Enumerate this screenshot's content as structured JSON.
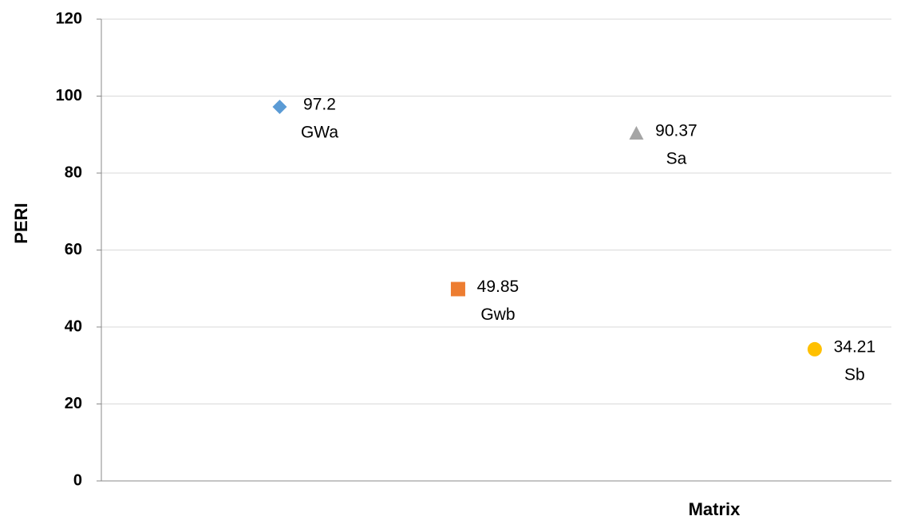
{
  "chart_data": {
    "type": "scatter",
    "x_label": "Matrix",
    "y_label": "PERI",
    "series": [
      {
        "name": "GWa",
        "color": "#5b9bd5",
        "marker": "diamond",
        "x": [
          1
        ],
        "values": [
          97.2
        ]
      },
      {
        "name": "Gwb",
        "color": "#ed7d31",
        "marker": "square",
        "x": [
          2
        ],
        "values": [
          49.85
        ]
      },
      {
        "name": "Sa",
        "color": "#a5a5a5",
        "marker": "triangle",
        "x": [
          3
        ],
        "values": [
          90.37
        ]
      },
      {
        "name": "Sb",
        "color": "#ffc000",
        "marker": "circle",
        "x": [
          4
        ],
        "values": [
          34.21
        ]
      }
    ],
    "xlim": [
      0,
      4.43
    ],
    "ylim": [
      0,
      120
    ],
    "yticks": [
      0,
      20,
      40,
      60,
      80,
      100,
      120
    ],
    "grid": true
  }
}
